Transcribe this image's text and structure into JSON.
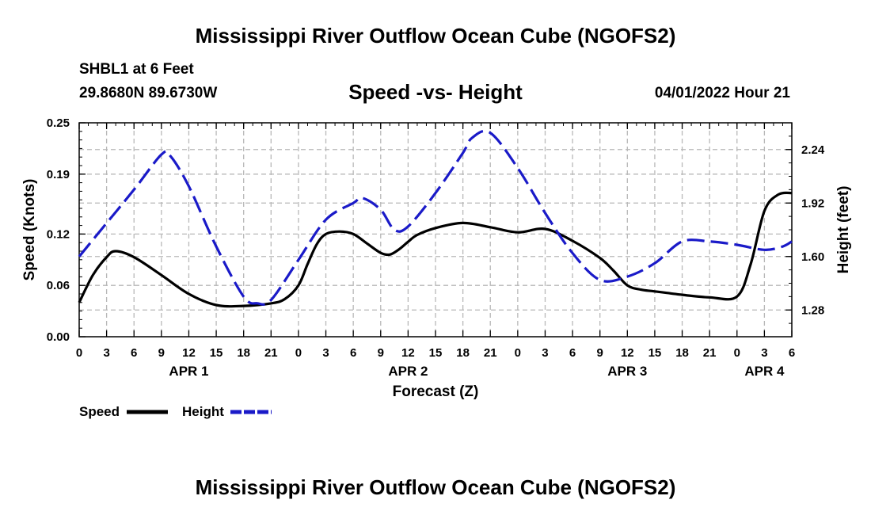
{
  "header": {
    "title": "Mississippi River Outflow Ocean Cube (NGOFS2)",
    "station": "SHBL1 at 6 Feet",
    "coordinates": "29.8680N  89.6730W",
    "subtitle": "Speed -vs- Height",
    "datetime": "04/01/2022 Hour 21",
    "bottom_title": "Mississippi River Outflow Ocean Cube (NGOFS2)"
  },
  "legend": {
    "speed_label": "Speed",
    "height_label": "Height"
  },
  "chart_data": {
    "type": "line",
    "title": "Speed -vs- Height",
    "xlabel": "Forecast (Z)",
    "ylabel": "Speed (Knots)",
    "ylabel_right": "Height (feet)",
    "xlim": [
      0,
      78
    ],
    "ylim": [
      0,
      0.25
    ],
    "ylim_right": [
      1.12,
      2.4
    ],
    "grid": true,
    "x_ticks": [
      0,
      3,
      6,
      9,
      12,
      15,
      18,
      21,
      24,
      27,
      30,
      33,
      36,
      39,
      42,
      45,
      48,
      51,
      54,
      57,
      60,
      63,
      66,
      69,
      72,
      75,
      78
    ],
    "x_tick_labels": [
      "0",
      "3",
      "6",
      "9",
      "12",
      "15",
      "18",
      "21",
      "0",
      "3",
      "6",
      "9",
      "12",
      "15",
      "18",
      "21",
      "0",
      "3",
      "6",
      "9",
      "12",
      "15",
      "18",
      "21",
      "0",
      "3",
      "6"
    ],
    "day_labels": [
      {
        "x": 12,
        "label": "APR 1"
      },
      {
        "x": 36,
        "label": "APR 2"
      },
      {
        "x": 60,
        "label": "APR 3"
      },
      {
        "x": 75,
        "label": "APR 4"
      }
    ],
    "y_ticks": [
      0.0,
      0.06,
      0.12,
      0.19,
      0.25
    ],
    "y_tick_labels": [
      "0.00",
      "0.06",
      "0.12",
      "0.19",
      "0.25"
    ],
    "y_ticks_right": [
      1.28,
      1.6,
      1.92,
      2.24
    ],
    "y_tick_labels_right": [
      "1.28",
      "1.60",
      "1.92",
      "2.24"
    ],
    "series": [
      {
        "name": "Speed",
        "axis": "left",
        "color": "#000000",
        "style": "solid",
        "x": [
          0,
          1.5,
          3,
          4,
          6,
          9,
          12,
          15,
          18,
          21,
          22.5,
          24,
          25,
          26,
          27,
          28.5,
          30,
          31.5,
          33,
          34,
          35,
          36,
          37,
          39,
          42,
          45,
          48,
          51,
          54,
          57,
          58.5,
          60,
          61.5,
          63,
          66,
          69,
          72,
          73.5,
          75,
          76.5,
          78
        ],
        "values": [
          0.04,
          0.072,
          0.093,
          0.1,
          0.093,
          0.072,
          0.05,
          0.037,
          0.036,
          0.039,
          0.044,
          0.06,
          0.085,
          0.108,
          0.12,
          0.123,
          0.12,
          0.109,
          0.098,
          0.096,
          0.102,
          0.111,
          0.119,
          0.127,
          0.133,
          0.128,
          0.122,
          0.126,
          0.112,
          0.092,
          0.077,
          0.06,
          0.055,
          0.053,
          0.049,
          0.046,
          0.047,
          0.085,
          0.147,
          0.166,
          0.168
        ]
      },
      {
        "name": "Height",
        "axis": "right",
        "color": "#1a1ac8",
        "style": "dashed",
        "x": [
          0,
          3,
          6,
          9,
          10,
          12,
          15,
          18,
          19.5,
          21,
          24,
          27,
          30,
          31,
          33,
          34.5,
          36,
          39,
          42,
          43,
          45,
          48,
          51,
          54,
          57,
          60,
          63,
          66,
          69,
          72,
          75,
          77,
          78
        ],
        "values": [
          1.6,
          1.8,
          2.0,
          2.21,
          2.2,
          2.02,
          1.66,
          1.36,
          1.32,
          1.34,
          1.58,
          1.82,
          1.92,
          1.95,
          1.88,
          1.76,
          1.78,
          1.98,
          2.22,
          2.31,
          2.34,
          2.13,
          1.86,
          1.62,
          1.46,
          1.48,
          1.56,
          1.69,
          1.69,
          1.67,
          1.64,
          1.66,
          1.69
        ]
      }
    ]
  }
}
